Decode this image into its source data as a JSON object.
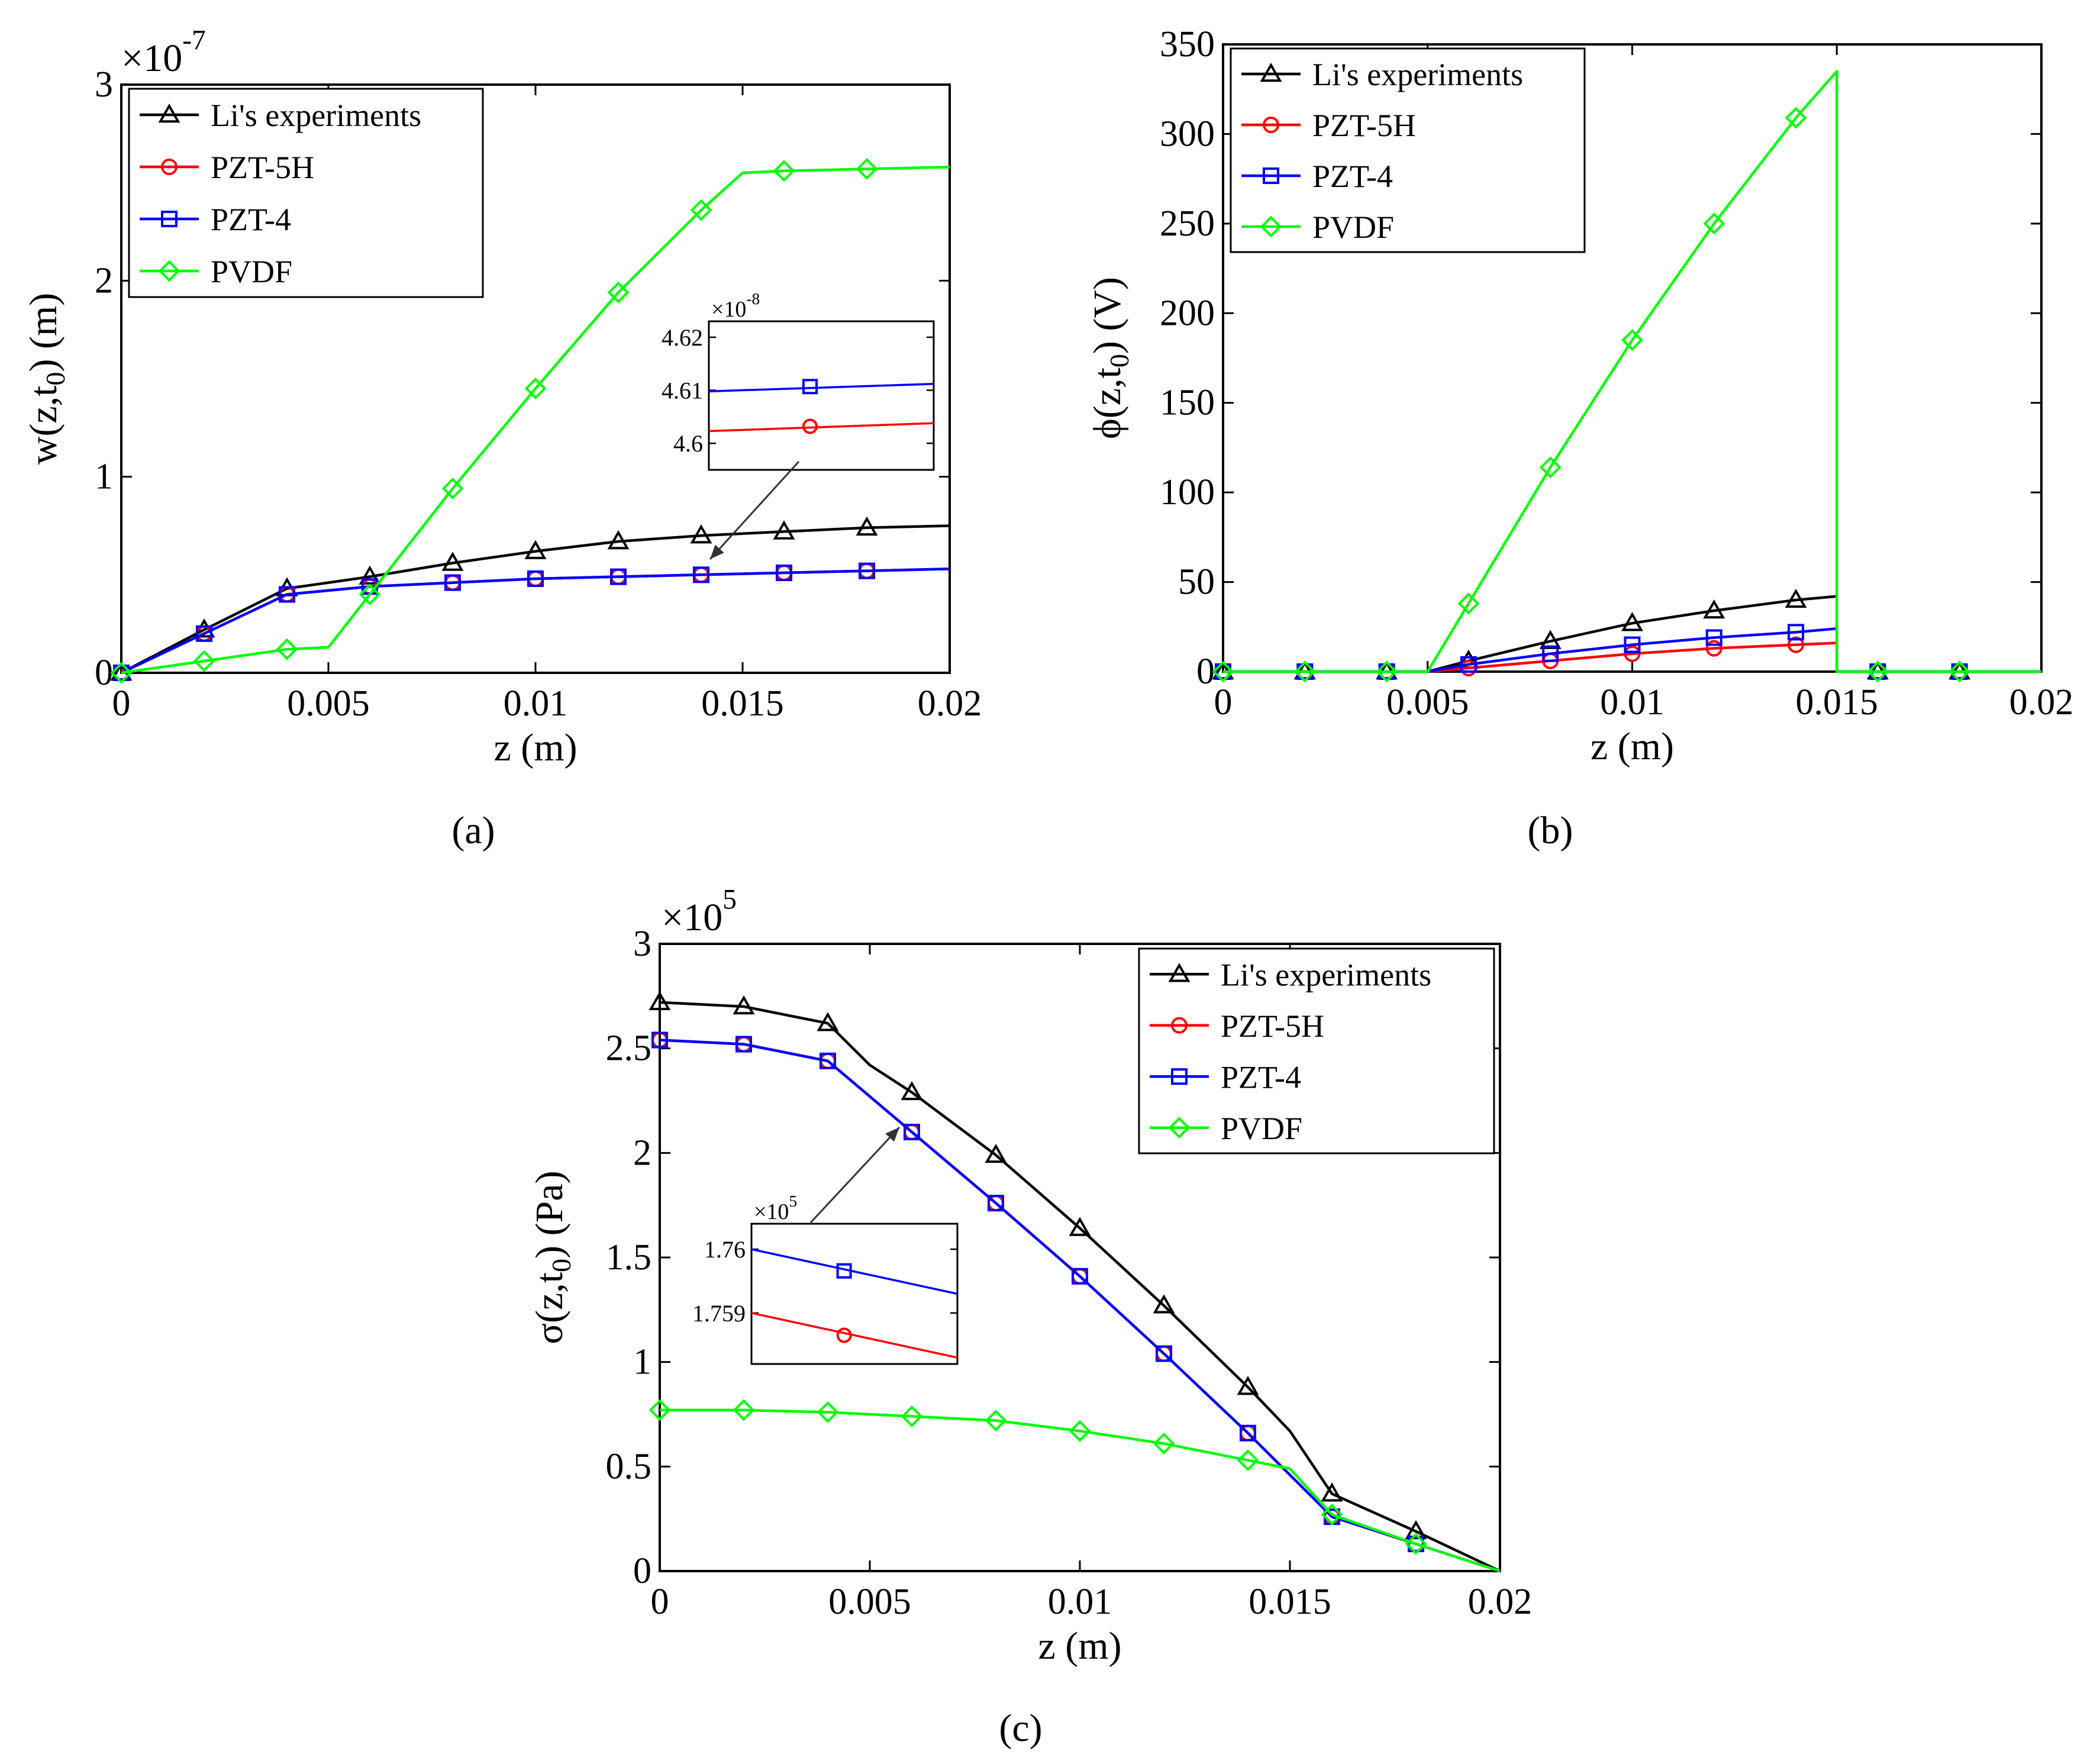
{
  "colors": {
    "exp": "#000000",
    "pzt5h": "#ff0000",
    "pzt4": "#0000ff",
    "pvdf": "#00ff00"
  },
  "chart_data": [
    {
      "id": "a",
      "type": "line",
      "panel_label": "(a)",
      "xlabel": "z (m)",
      "ylabel": "w(z,t0) (m)",
      "exponent_label": "×10-7",
      "xlim": [
        0,
        0.02
      ],
      "ylim": [
        0,
        3
      ],
      "xticks": [
        0,
        0.005,
        0.01,
        0.015,
        0.02
      ],
      "xtick_labels": [
        "0",
        "0.005",
        "0.01",
        "0.015",
        "0.02"
      ],
      "yticks": [
        0,
        1,
        2,
        3
      ],
      "ytick_labels": [
        "0",
        "1",
        "2",
        "3"
      ],
      "legend_position": "top-left",
      "series": [
        {
          "name": "Li's experiments",
          "color": "#000000",
          "marker": "triangle",
          "x": [
            0,
            0.002,
            0.004,
            0.005,
            0.006,
            0.008,
            0.01,
            0.012,
            0.014,
            0.016,
            0.018,
            0.02
          ],
          "y": [
            0,
            0.22,
            0.43,
            0.46,
            0.49,
            0.56,
            0.62,
            0.67,
            0.7,
            0.72,
            0.74,
            0.75
          ],
          "mx": [
            0,
            0.002,
            0.004,
            0.006,
            0.008,
            0.01,
            0.012,
            0.014,
            0.016,
            0.018
          ]
        },
        {
          "name": "PZT-5H",
          "color": "#ff0000",
          "marker": "circle",
          "x": [
            0,
            0.002,
            0.004,
            0.006,
            0.008,
            0.01,
            0.012,
            0.014,
            0.016,
            0.018,
            0.02
          ],
          "y": [
            0,
            0.2,
            0.4,
            0.44,
            0.46,
            0.48,
            0.49,
            0.5,
            0.51,
            0.52,
            0.53
          ],
          "mx": [
            0,
            0.002,
            0.004,
            0.006,
            0.008,
            0.01,
            0.012,
            0.014,
            0.016,
            0.018
          ]
        },
        {
          "name": "PZT-4",
          "color": "#0000ff",
          "marker": "square",
          "x": [
            0,
            0.002,
            0.004,
            0.006,
            0.008,
            0.01,
            0.012,
            0.014,
            0.016,
            0.018,
            0.02
          ],
          "y": [
            0,
            0.2,
            0.4,
            0.44,
            0.46,
            0.48,
            0.49,
            0.5,
            0.51,
            0.52,
            0.53
          ],
          "mx": [
            0,
            0.002,
            0.004,
            0.006,
            0.008,
            0.01,
            0.012,
            0.014,
            0.016,
            0.018
          ]
        },
        {
          "name": "PVDF",
          "color": "#00ff00",
          "marker": "diamond",
          "x": [
            0,
            0.002,
            0.004,
            0.005,
            0.006,
            0.008,
            0.01,
            0.012,
            0.014,
            0.015,
            0.016,
            0.018,
            0.02
          ],
          "y": [
            0,
            0.06,
            0.12,
            0.13,
            0.4,
            0.94,
            1.45,
            1.94,
            2.36,
            2.55,
            2.56,
            2.57,
            2.58
          ],
          "mx": [
            0,
            0.002,
            0.004,
            0.006,
            0.008,
            0.01,
            0.012,
            0.014,
            0.016,
            0.018
          ]
        }
      ],
      "inset": {
        "exponent_label": "×10-8",
        "yticks": [
          4.6,
          4.61,
          4.62
        ],
        "ytick_labels": [
          "4.6",
          "4.61",
          "4.62"
        ],
        "ylim": [
          4.595,
          4.623
        ],
        "series": [
          {
            "name": "PZT-4",
            "color": "#0000ff",
            "marker": "square",
            "y": [
              4.6098,
              4.6112
            ],
            "marker_y": 4.6107
          },
          {
            "name": "PZT-5H",
            "color": "#ff0000",
            "marker": "circle",
            "y": [
              4.6023,
              4.6038
            ],
            "marker_y": 4.6032
          }
        ]
      }
    },
    {
      "id": "b",
      "type": "line",
      "panel_label": "(b)",
      "xlabel": "z (m)",
      "ylabel": "ϕ(z,t0) (V)",
      "xlim": [
        0,
        0.02
      ],
      "ylim": [
        0,
        350
      ],
      "xticks": [
        0,
        0.005,
        0.01,
        0.015,
        0.02
      ],
      "xtick_labels": [
        "0",
        "0.005",
        "0.01",
        "0.015",
        "0.02"
      ],
      "yticks": [
        0,
        50,
        100,
        150,
        200,
        250,
        300,
        350
      ],
      "ytick_labels": [
        "0",
        "50",
        "100",
        "150",
        "200",
        "250",
        "300",
        "350"
      ],
      "legend_position": "top-left",
      "series": [
        {
          "name": "Li's experiments",
          "color": "#000000",
          "marker": "triangle",
          "x": [
            0,
            0.005,
            0.006,
            0.008,
            0.01,
            0.012,
            0.014,
            0.015,
            0.015,
            0.02
          ],
          "y": [
            0,
            0,
            6,
            17,
            27,
            34,
            40,
            42,
            0,
            0
          ],
          "mx": [
            0,
            0.002,
            0.004,
            0.006,
            0.008,
            0.01,
            0.012,
            0.014,
            0.016,
            0.018
          ]
        },
        {
          "name": "PZT-5H",
          "color": "#ff0000",
          "marker": "circle",
          "x": [
            0,
            0.005,
            0.006,
            0.008,
            0.01,
            0.012,
            0.014,
            0.015,
            0.015,
            0.02
          ],
          "y": [
            0,
            0,
            2,
            6,
            10,
            13,
            15,
            16,
            0,
            0
          ],
          "mx": [
            0,
            0.002,
            0.004,
            0.006,
            0.008,
            0.01,
            0.012,
            0.014,
            0.016,
            0.018
          ]
        },
        {
          "name": "PZT-4",
          "color": "#0000ff",
          "marker": "square",
          "x": [
            0,
            0.005,
            0.006,
            0.008,
            0.01,
            0.012,
            0.014,
            0.015,
            0.015,
            0.02
          ],
          "y": [
            0,
            0,
            4,
            10,
            15,
            19,
            22,
            24,
            0,
            0
          ],
          "mx": [
            0,
            0.002,
            0.004,
            0.006,
            0.008,
            0.01,
            0.012,
            0.014,
            0.016,
            0.018
          ]
        },
        {
          "name": "PVDF",
          "color": "#00ff00",
          "marker": "diamond",
          "x": [
            0,
            0.005,
            0.006,
            0.008,
            0.01,
            0.012,
            0.014,
            0.015,
            0.015,
            0.02
          ],
          "y": [
            0,
            0,
            38,
            114,
            185,
            250,
            309,
            335,
            0,
            0
          ],
          "mx": [
            0,
            0.002,
            0.004,
            0.006,
            0.008,
            0.01,
            0.012,
            0.014,
            0.016,
            0.018
          ]
        }
      ]
    },
    {
      "id": "c",
      "type": "line",
      "panel_label": "(c)",
      "xlabel": "z (m)",
      "ylabel": "σ(z,t0) (Pa)",
      "exponent_label": "×105",
      "xlim": [
        0,
        0.02
      ],
      "ylim": [
        0,
        3
      ],
      "xticks": [
        0,
        0.005,
        0.01,
        0.015,
        0.02
      ],
      "xtick_labels": [
        "0",
        "0.005",
        "0.01",
        "0.015",
        "0.02"
      ],
      "yticks": [
        0,
        0.5,
        1,
        1.5,
        2,
        2.5,
        3
      ],
      "ytick_labels": [
        "0",
        "0.5",
        "1",
        "1.5",
        "2",
        "2.5",
        "3"
      ],
      "legend_position": "top-right",
      "series": [
        {
          "name": "Li's experiments",
          "color": "#000000",
          "marker": "triangle",
          "x": [
            0,
            0.002,
            0.004,
            0.005,
            0.006,
            0.008,
            0.01,
            0.012,
            0.014,
            0.015,
            0.016,
            0.018,
            0.02
          ],
          "y": [
            2.72,
            2.7,
            2.62,
            2.42,
            2.29,
            1.99,
            1.64,
            1.27,
            0.88,
            0.67,
            0.37,
            0.19,
            0
          ],
          "mx": [
            0,
            0.002,
            0.004,
            0.006,
            0.008,
            0.01,
            0.012,
            0.014,
            0.016,
            0.018
          ]
        },
        {
          "name": "PZT-5H",
          "color": "#ff0000",
          "marker": "circle",
          "x": [
            0,
            0.002,
            0.004,
            0.006,
            0.008,
            0.01,
            0.012,
            0.014,
            0.016,
            0.018,
            0.02
          ],
          "y": [
            2.54,
            2.52,
            2.44,
            2.1,
            1.76,
            1.41,
            1.04,
            0.66,
            0.26,
            0.13,
            0
          ],
          "mx": [
            0,
            0.002,
            0.004,
            0.006,
            0.008,
            0.01,
            0.012,
            0.014,
            0.016,
            0.018
          ]
        },
        {
          "name": "PZT-4",
          "color": "#0000ff",
          "marker": "square",
          "x": [
            0,
            0.002,
            0.004,
            0.006,
            0.008,
            0.01,
            0.012,
            0.014,
            0.016,
            0.018,
            0.02
          ],
          "y": [
            2.54,
            2.52,
            2.44,
            2.1,
            1.76,
            1.41,
            1.04,
            0.66,
            0.26,
            0.13,
            0
          ],
          "mx": [
            0,
            0.002,
            0.004,
            0.006,
            0.008,
            0.01,
            0.012,
            0.014,
            0.016,
            0.018
          ]
        },
        {
          "name": "PVDF",
          "color": "#00ff00",
          "marker": "diamond",
          "x": [
            0,
            0.002,
            0.004,
            0.006,
            0.008,
            0.01,
            0.012,
            0.014,
            0.015,
            0.016,
            0.018,
            0.02
          ],
          "y": [
            0.77,
            0.77,
            0.76,
            0.74,
            0.72,
            0.67,
            0.61,
            0.53,
            0.49,
            0.27,
            0.13,
            0
          ],
          "mx": [
            0,
            0.002,
            0.004,
            0.006,
            0.008,
            0.01,
            0.012,
            0.014,
            0.016,
            0.018
          ]
        }
      ],
      "inset": {
        "exponent_label": "×105",
        "yticks": [
          1.759,
          1.76
        ],
        "ytick_labels": [
          "1.759",
          "1.76"
        ],
        "ylim": [
          1.7582,
          1.7604
        ],
        "series": [
          {
            "name": "PZT-4",
            "color": "#0000ff",
            "marker": "square",
            "y": [
              1.76,
              1.7593
            ],
            "marker_y": 1.75966
          },
          {
            "name": "PZT-5H",
            "color": "#ff0000",
            "marker": "circle",
            "y": [
              1.759,
              1.7583
            ],
            "marker_y": 1.75865
          }
        ]
      }
    }
  ]
}
